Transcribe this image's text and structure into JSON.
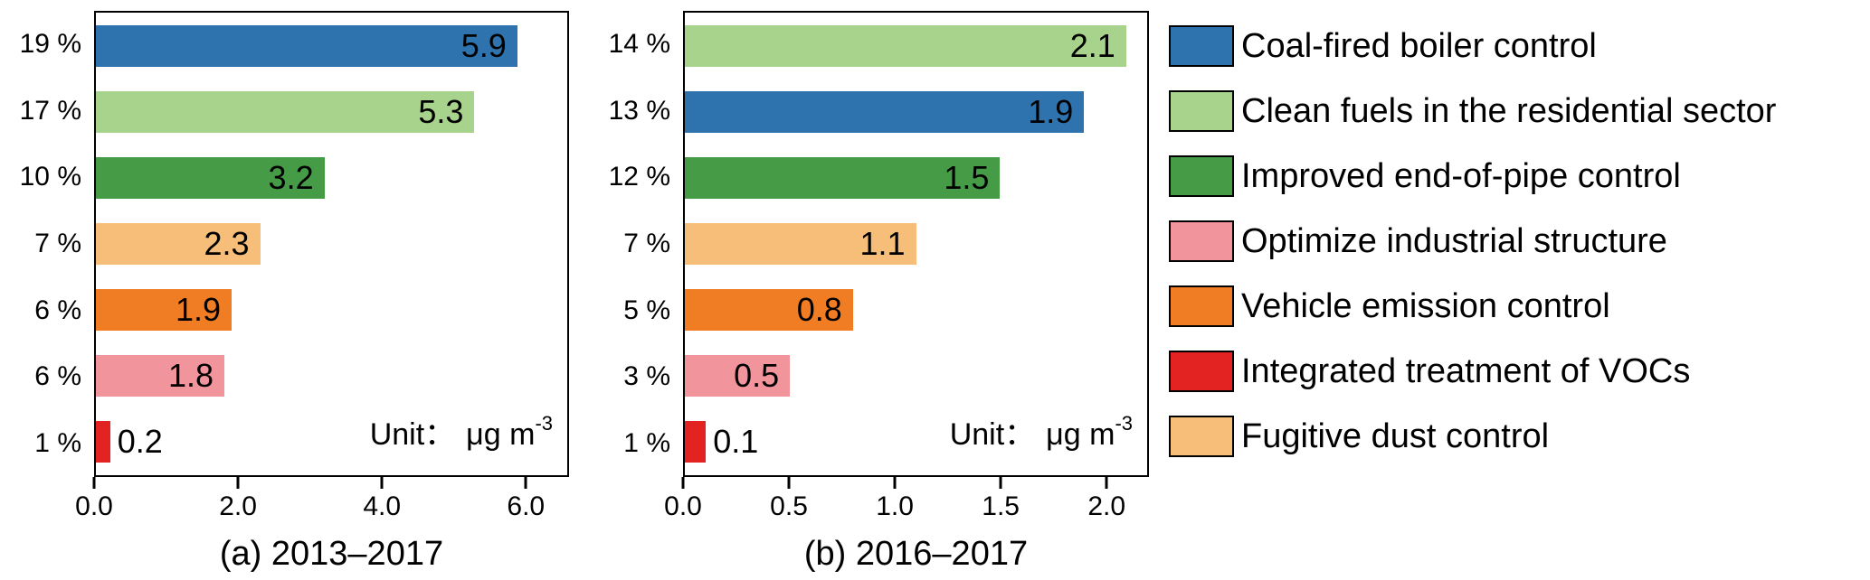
{
  "figure": {
    "background": "#ffffff"
  },
  "palette": {
    "blue": "#2E73AE",
    "light_green": "#A8D38D",
    "dark_green": "#469C46",
    "pink": "#F1949B",
    "orange": "#F07D23",
    "red": "#E32222",
    "tan": "#F6BE79"
  },
  "chart_data": [
    {
      "type": "bar",
      "orientation": "horizontal",
      "title": "(a) 2013–2017",
      "unit_prefix": "Unit：",
      "unit_base": "μg m",
      "unit_exp": "-3",
      "xlim": [
        0,
        6.6
      ],
      "xticks": [
        "0.0",
        "2.0",
        "4.0",
        "6.0"
      ],
      "bars": [
        {
          "category": "Coal-fired boiler control",
          "pct": "19 %",
          "value": 5.9,
          "label": "5.9",
          "color": "#2E73AE"
        },
        {
          "category": "Clean fuels in the residential sector",
          "pct": "17 %",
          "value": 5.3,
          "label": "5.3",
          "color": "#A8D38D"
        },
        {
          "category": "Improved end-of-pipe control",
          "pct": "10 %",
          "value": 3.2,
          "label": "3.2",
          "color": "#469C46"
        },
        {
          "category": "Fugitive dust control",
          "pct": "7 %",
          "value": 2.3,
          "label": "2.3",
          "color": "#F6BE79"
        },
        {
          "category": "Vehicle emission control",
          "pct": "6 %",
          "value": 1.9,
          "label": "1.9",
          "color": "#F07D23"
        },
        {
          "category": "Optimize industrial structure",
          "pct": "6 %",
          "value": 1.8,
          "label": "1.8",
          "color": "#F1949B"
        },
        {
          "category": "Integrated treatment of VOCs",
          "pct": "1 %",
          "value": 0.2,
          "label": "0.2",
          "color": "#E32222"
        }
      ]
    },
    {
      "type": "bar",
      "orientation": "horizontal",
      "title": "(b) 2016–2017",
      "unit_prefix": "Unit：",
      "unit_base": "μg m",
      "unit_exp": "-3",
      "xlim": [
        0,
        2.2
      ],
      "xticks": [
        "0.0",
        "0.5",
        "1.0",
        "1.5",
        "2.0"
      ],
      "bars": [
        {
          "category": "Clean fuels in the residential sector",
          "pct": "14 %",
          "value": 2.1,
          "label": "2.1",
          "color": "#A8D38D"
        },
        {
          "category": "Coal-fired boiler control",
          "pct": "13 %",
          "value": 1.9,
          "label": "1.9",
          "color": "#2E73AE"
        },
        {
          "category": "Improved end-of-pipe control",
          "pct": "12 %",
          "value": 1.5,
          "label": "1.5",
          "color": "#469C46"
        },
        {
          "category": "Fugitive dust control",
          "pct": "7 %",
          "value": 1.1,
          "label": "1.1",
          "color": "#F6BE79"
        },
        {
          "category": "Vehicle emission control",
          "pct": "5 %",
          "value": 0.8,
          "label": "0.8",
          "color": "#F07D23"
        },
        {
          "category": "Optimize industrial structure",
          "pct": "3 %",
          "value": 0.5,
          "label": "0.5",
          "color": "#F1949B"
        },
        {
          "category": "Integrated treatment of VOCs",
          "pct": "1 %",
          "value": 0.1,
          "label": "0.1",
          "color": "#E32222"
        }
      ]
    }
  ],
  "legend": [
    {
      "label": "Coal-fired boiler control",
      "color": "#2E73AE"
    },
    {
      "label": "Clean fuels in the residential sector",
      "color": "#A8D38D"
    },
    {
      "label": "Improved end-of-pipe control",
      "color": "#469C46"
    },
    {
      "label": "Optimize industrial structure",
      "color": "#F1949B"
    },
    {
      "label": "Vehicle emission control",
      "color": "#F07D23"
    },
    {
      "label": "Integrated treatment of VOCs",
      "color": "#E32222"
    },
    {
      "label": "Fugitive dust control",
      "color": "#F6BE79"
    }
  ]
}
